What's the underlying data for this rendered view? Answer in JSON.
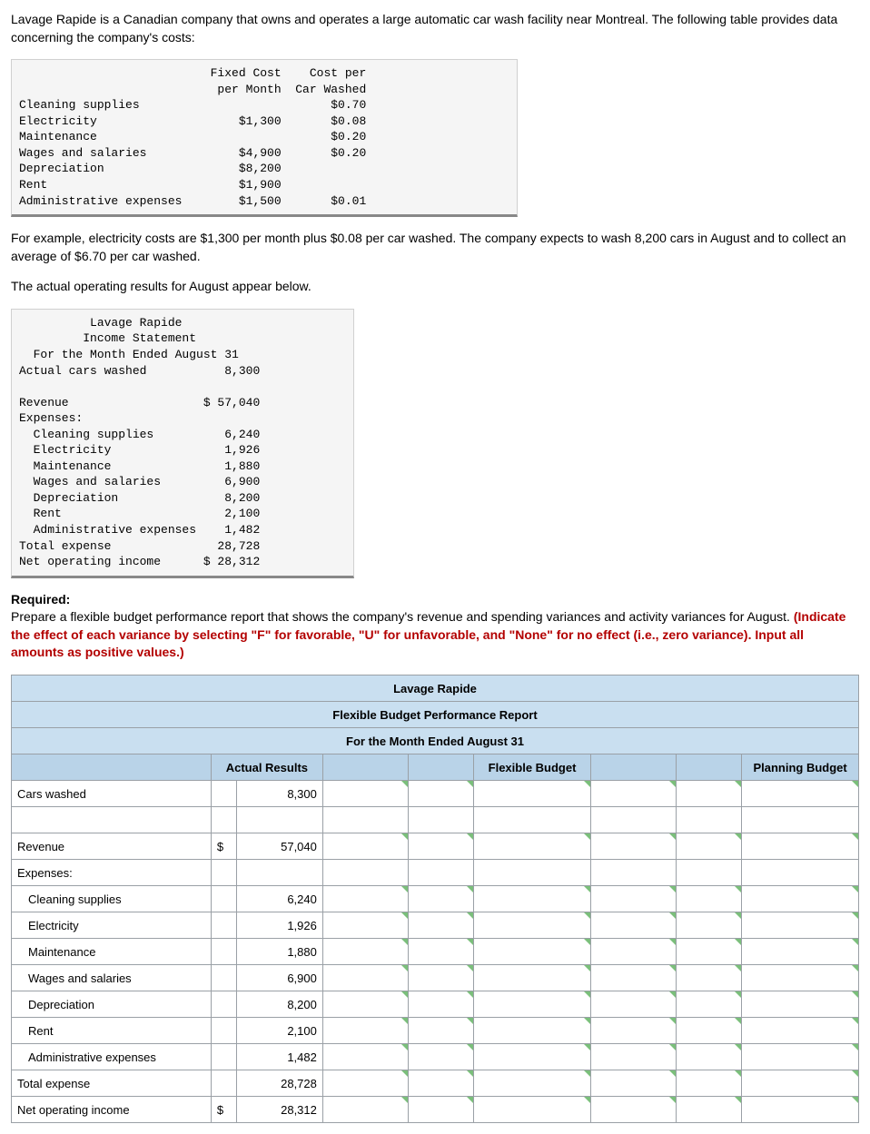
{
  "intro": "Lavage Rapide is a Canadian company that owns and operates a large automatic car wash facility near Montreal. The following table provides data concerning the company's costs:",
  "cost_table": {
    "headers": [
      "",
      "Fixed Cost\nper Month",
      "Cost per\nCar Washed"
    ],
    "rows": [
      {
        "label": "Cleaning supplies",
        "fixed": "",
        "per": "$0.70"
      },
      {
        "label": "Electricity",
        "fixed": "$1,300",
        "per": "$0.08"
      },
      {
        "label": "Maintenance",
        "fixed": "",
        "per": "$0.20"
      },
      {
        "label": "Wages and salaries",
        "fixed": "$4,900",
        "per": "$0.20"
      },
      {
        "label": "Depreciation",
        "fixed": "$8,200",
        "per": ""
      },
      {
        "label": "Rent",
        "fixed": "$1,900",
        "per": ""
      },
      {
        "label": "Administrative expenses",
        "fixed": "$1,500",
        "per": "$0.01"
      }
    ]
  },
  "example_text": "For example, electricity costs are $1,300 per month plus $0.08 per car washed. The company expects to wash 8,200 cars in August and to collect an average of $6.70 per car washed.",
  "actual_intro": "The actual operating results for August appear below.",
  "income": {
    "title1": "Lavage Rapide",
    "title2": "Income Statement",
    "title3": "For the Month Ended August 31",
    "cars_label": "Actual cars washed",
    "cars": "8,300",
    "rev_label": "Revenue",
    "revenue": "$ 57,040",
    "exp_label": "Expenses:",
    "expenses": [
      {
        "label": "Cleaning supplies",
        "val": "6,240"
      },
      {
        "label": "Electricity",
        "val": "1,926"
      },
      {
        "label": "Maintenance",
        "val": "1,880"
      },
      {
        "label": "Wages and salaries",
        "val": "6,900"
      },
      {
        "label": "Depreciation",
        "val": "8,200"
      },
      {
        "label": "Rent",
        "val": "2,100"
      },
      {
        "label": "Administrative expenses",
        "val": "1,482"
      }
    ],
    "total_label": "Total expense",
    "total": "28,728",
    "noi_label": "Net operating income",
    "noi": "$ 28,312"
  },
  "required_label": "Required:",
  "required_text": "Prepare a flexible budget performance report that shows the company's revenue and spending variances and activity variances for August. ",
  "required_red": "(Indicate the effect of each variance by selecting \"F\" for favorable, \"U\" for unfavorable, and \"None\" for no effect (i.e., zero variance). Input all amounts as positive values.)",
  "flex": {
    "title": "Lavage Rapide",
    "subtitle": "Flexible Budget Performance Report",
    "period": "For the Month Ended August 31",
    "col_actual": "Actual Results",
    "col_flex": "Flexible Budget",
    "col_plan": "Planning Budget",
    "rows": [
      {
        "label": "Cars washed",
        "indent": false,
        "cur": "",
        "actual": "8,300"
      },
      {
        "label": "",
        "indent": false,
        "cur": "",
        "actual": ""
      },
      {
        "label": "Revenue",
        "indent": false,
        "cur": "$",
        "actual": "57,040"
      },
      {
        "label": "Expenses:",
        "indent": false,
        "cur": "",
        "actual": ""
      },
      {
        "label": "Cleaning supplies",
        "indent": true,
        "cur": "",
        "actual": "6,240"
      },
      {
        "label": "Electricity",
        "indent": true,
        "cur": "",
        "actual": "1,926"
      },
      {
        "label": "Maintenance",
        "indent": true,
        "cur": "",
        "actual": "1,880"
      },
      {
        "label": "Wages and salaries",
        "indent": true,
        "cur": "",
        "actual": "6,900"
      },
      {
        "label": "Depreciation",
        "indent": true,
        "cur": "",
        "actual": "8,200"
      },
      {
        "label": "Rent",
        "indent": true,
        "cur": "",
        "actual": "2,100"
      },
      {
        "label": "Administrative expenses",
        "indent": true,
        "cur": "",
        "actual": "1,482"
      },
      {
        "label": "Total expense",
        "indent": false,
        "cur": "",
        "actual": "28,728"
      },
      {
        "label": "Net operating income",
        "indent": false,
        "cur": "$",
        "actual": "28,312"
      }
    ]
  }
}
